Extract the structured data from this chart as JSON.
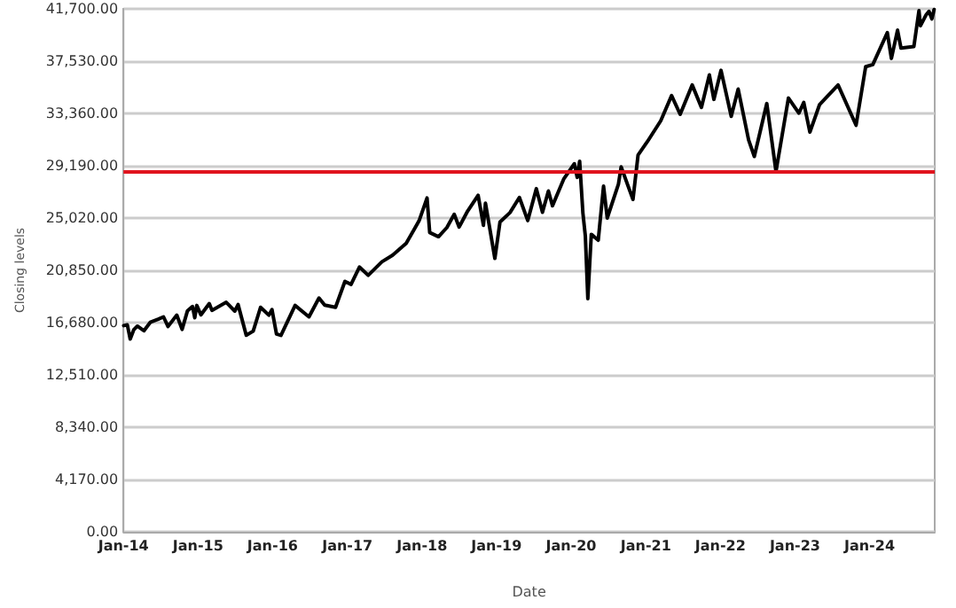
{
  "chart_data": {
    "type": "line",
    "xlabel": "Date",
    "ylabel": "Closing levels",
    "x": [
      "2014-01-02",
      "2014-01-20",
      "2014-02-03",
      "2014-02-20",
      "2014-03-10",
      "2014-04-11",
      "2014-05-12",
      "2014-06-20",
      "2014-07-16",
      "2014-08-07",
      "2014-09-19",
      "2014-10-15",
      "2014-11-10",
      "2014-12-05",
      "2014-12-16",
      "2014-12-26",
      "2015-01-15",
      "2015-02-25",
      "2015-03-10",
      "2015-05-19",
      "2015-06-30",
      "2015-07-16",
      "2015-08-25",
      "2015-09-28",
      "2015-11-03",
      "2015-12-14",
      "2015-12-29",
      "2016-01-20",
      "2016-02-11",
      "2016-04-20",
      "2016-06-27",
      "2016-08-15",
      "2016-09-12",
      "2016-11-04",
      "2016-12-20",
      "2017-01-19",
      "2017-03-01",
      "2017-04-13",
      "2017-06-19",
      "2017-08-10",
      "2017-10-16",
      "2017-12-18",
      "2018-01-26",
      "2018-02-08",
      "2018-03-23",
      "2018-05-03",
      "2018-06-08",
      "2018-07-02",
      "2018-08-10",
      "2018-10-03",
      "2018-10-29",
      "2018-11-08",
      "2018-12-24",
      "2019-01-18",
      "2019-03-08",
      "2019-04-23",
      "2019-06-03",
      "2019-07-15",
      "2019-08-14",
      "2019-09-12",
      "2019-10-02",
      "2019-11-27",
      "2020-01-17",
      "2020-01-31",
      "2020-02-12",
      "2020-02-28",
      "2020-03-11",
      "2020-03-23",
      "2020-04-09",
      "2020-05-13",
      "2020-06-08",
      "2020-06-26",
      "2020-08-20",
      "2020-09-02",
      "2020-10-30",
      "2020-11-24",
      "2021-01-08",
      "2021-03-15",
      "2021-05-07",
      "2021-06-18",
      "2021-08-16",
      "2021-09-30",
      "2021-11-08",
      "2021-11-30",
      "2022-01-04",
      "2022-02-23",
      "2022-03-29",
      "2022-05-19",
      "2022-06-16",
      "2022-08-16",
      "2022-09-30",
      "2022-11-30",
      "2023-01-20",
      "2023-02-13",
      "2023-03-15",
      "2023-05-01",
      "2023-07-31",
      "2023-10-27",
      "2023-12-13",
      "2024-01-17",
      "2024-03-28",
      "2024-04-17",
      "2024-05-17",
      "2024-06-03",
      "2024-08-05",
      "2024-08-30",
      "2024-09-06",
      "2024-10-03",
      "2024-10-18",
      "2024-11-01",
      "2024-11-12"
    ],
    "values": [
      16440,
      16500,
      15370,
      16100,
      16400,
      16030,
      16700,
      16950,
      17140,
      16370,
      17280,
      16140,
      17610,
      17960,
      17070,
      18050,
      17300,
      18200,
      17660,
      18300,
      17600,
      18120,
      15670,
      16000,
      17900,
      17270,
      17720,
      15770,
      15660,
      18050,
      17140,
      18640,
      18070,
      17900,
      19970,
      19730,
      21110,
      20450,
      21530,
      22050,
      23000,
      24800,
      26620,
      23860,
      23530,
      24260,
      25320,
      24300,
      25500,
      26830,
      24440,
      26200,
      21800,
      24700,
      25450,
      26660,
      24820,
      27360,
      25480,
      27180,
      26000,
      28160,
      29350,
      28260,
      29550,
      25400,
      23550,
      18590,
      23720,
      23250,
      27570,
      25020,
      27740,
      29100,
      26500,
      30050,
      31100,
      32780,
      34780,
      33290,
      35630,
      33840,
      36430,
      34480,
      36800,
      33130,
      35300,
      31250,
      29930,
      34150,
      28730,
      34590,
      33380,
      34240,
      31870,
      34050,
      35630,
      32420,
      37090,
      37260,
      39800,
      37750,
      40000,
      38570,
      38700,
      41560,
      40350,
      41200,
      41500,
      40900,
      41650
    ],
    "color": "#000000",
    "line_style": "solid",
    "marker": "none",
    "xlim": [
      "2014-01-01",
      "2024-11-15"
    ],
    "xticks": [
      {
        "value": "2014-01-01",
        "label": "Jan-14"
      },
      {
        "value": "2015-01-01",
        "label": "Jan-15"
      },
      {
        "value": "2016-01-01",
        "label": "Jan-16"
      },
      {
        "value": "2017-01-01",
        "label": "Jan-17"
      },
      {
        "value": "2018-01-01",
        "label": "Jan-18"
      },
      {
        "value": "2019-01-01",
        "label": "Jan-19"
      },
      {
        "value": "2020-01-01",
        "label": "Jan-20"
      },
      {
        "value": "2021-01-01",
        "label": "Jan-21"
      },
      {
        "value": "2022-01-01",
        "label": "Jan-22"
      },
      {
        "value": "2023-01-01",
        "label": "Jan-23"
      },
      {
        "value": "2024-01-01",
        "label": "Jan-24"
      }
    ],
    "ylim": [
      0,
      41700
    ],
    "yticks": [
      {
        "value": 0,
        "label": "0.00"
      },
      {
        "value": 4170,
        "label": "4,170.00"
      },
      {
        "value": 8340,
        "label": "8,340.00"
      },
      {
        "value": 12510,
        "label": "12,510.00"
      },
      {
        "value": 16680,
        "label": "16,680.00"
      },
      {
        "value": 20850,
        "label": "20,850.00"
      },
      {
        "value": 25020,
        "label": "25,020.00"
      },
      {
        "value": 29190,
        "label": "29,190.00"
      },
      {
        "value": 33360,
        "label": "33,360.00"
      },
      {
        "value": 37530,
        "label": "37,530.00"
      },
      {
        "value": 41700,
        "label": "41,700.00"
      }
    ],
    "grid": "y",
    "ref_lines": [
      {
        "axis": "y",
        "value": 28700,
        "color": "#e0141e",
        "line_style": "solid"
      }
    ]
  }
}
